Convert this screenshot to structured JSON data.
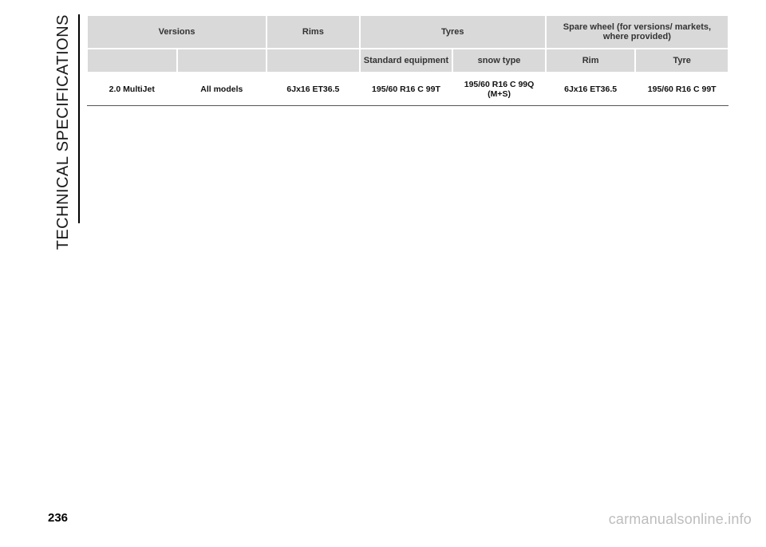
{
  "sidebar": {
    "title": "TECHNICAL SPECIFICATIONS"
  },
  "table": {
    "header_row1": {
      "versions": "Versions",
      "rims": "Rims",
      "tyres": "Tyres",
      "spare": "Spare wheel (for versions/ markets, where provided)"
    },
    "header_row2": {
      "blank1": "",
      "blank2": "",
      "blank3": "",
      "std": "Standard equipment",
      "snow": "snow type",
      "rim": "Rim",
      "tyre": "Tyre"
    },
    "rows": [
      {
        "version": "2.0 MultiJet",
        "models": "All models",
        "rims": "6Jx16 ET36.5",
        "std": "195/60 R16 C 99T",
        "snow": "195/60 R16 C 99Q (M+S)",
        "spare_rim": "6Jx16 ET36.5",
        "spare_tyre": "195/60 R16 C 99T"
      }
    ]
  },
  "page_number": "236",
  "watermark": "carmanualsonline.info",
  "colors": {
    "header_bg": "#d9d9d9",
    "text": "#1a1a1a",
    "watermark": "#bdbdbd"
  }
}
